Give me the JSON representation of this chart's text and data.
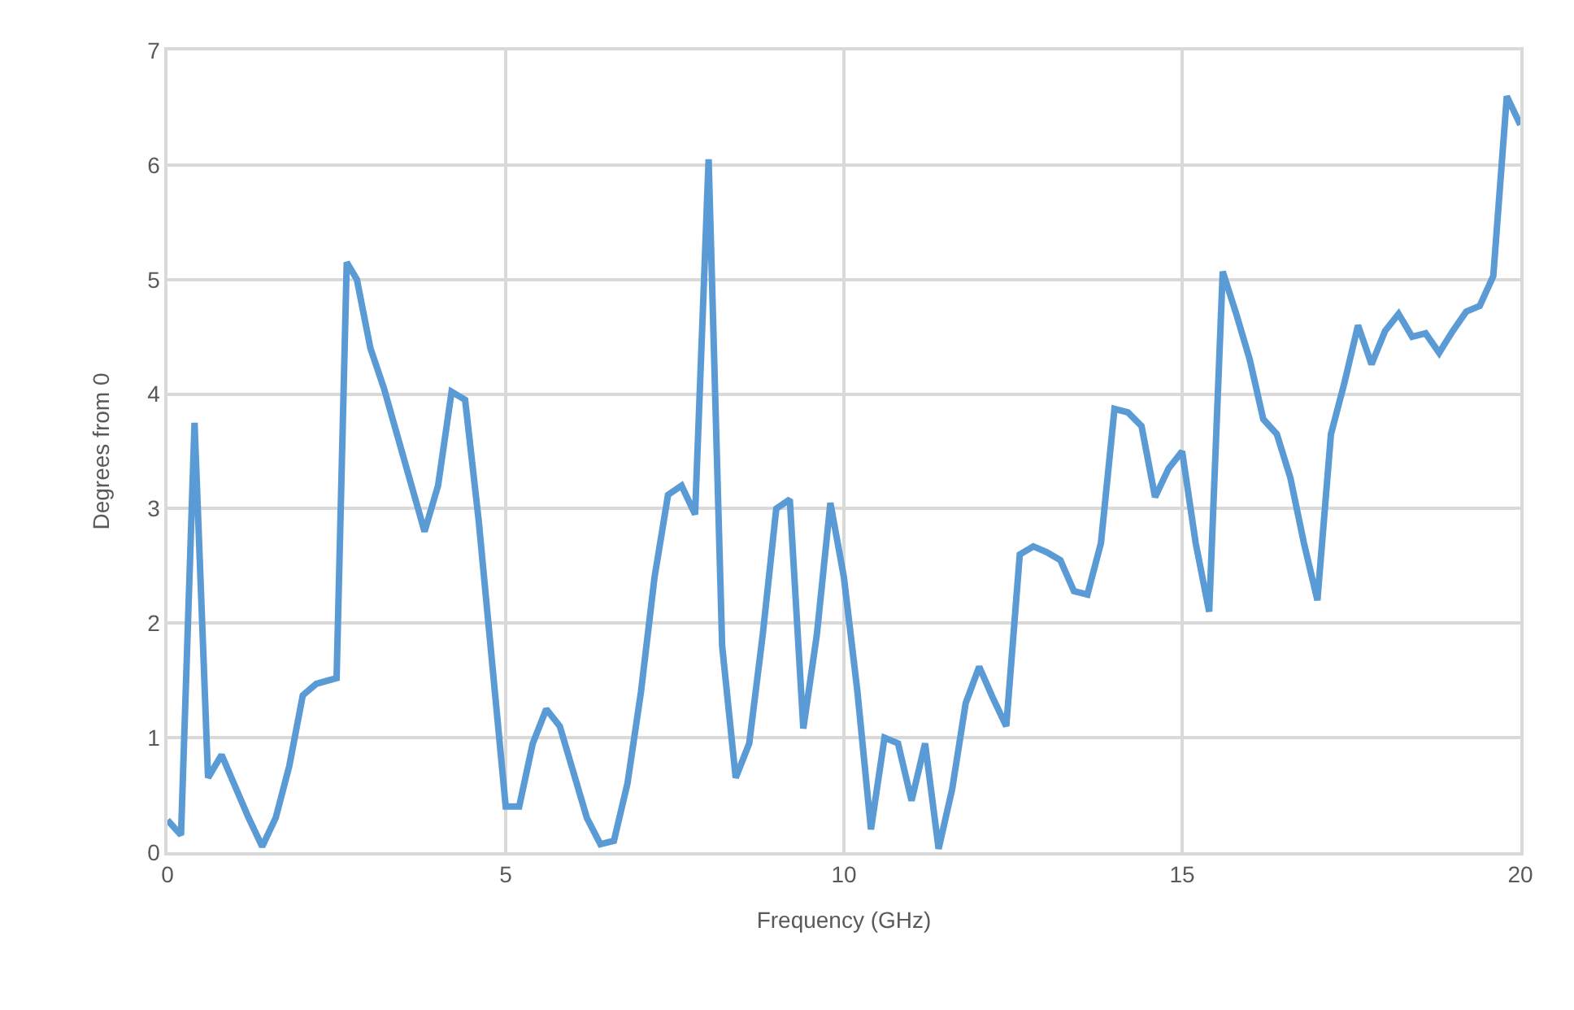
{
  "chart_data": {
    "type": "line",
    "xlabel": "Frequency (GHz)",
    "ylabel": "Degrees from 0",
    "x": [
      0,
      0.2,
      0.4,
      0.6,
      0.8,
      1.2,
      1.4,
      1.6,
      1.8,
      2.0,
      2.2,
      2.5,
      2.65,
      2.8,
      3.0,
      3.2,
      3.8,
      4.0,
      4.2,
      4.4,
      4.6,
      5.0,
      5.2,
      5.4,
      5.6,
      5.8,
      6.0,
      6.2,
      6.4,
      6.6,
      6.8,
      7.0,
      7.2,
      7.4,
      7.6,
      7.8,
      8.0,
      8.2,
      8.4,
      8.6,
      8.8,
      9.0,
      9.2,
      9.4,
      9.6,
      9.8,
      10.0,
      10.2,
      10.4,
      10.6,
      10.8,
      11.0,
      11.2,
      11.4,
      11.6,
      11.8,
      12.0,
      12.2,
      12.4,
      12.6,
      12.8,
      13.0,
      13.2,
      13.4,
      13.6,
      13.8,
      14.0,
      14.2,
      14.4,
      14.6,
      14.8,
      15.0,
      15.2,
      15.4,
      15.6,
      15.8,
      16.0,
      16.2,
      16.4,
      16.6,
      16.8,
      17.0,
      17.2,
      17.4,
      17.6,
      17.8,
      18.0,
      18.2,
      18.4,
      18.6,
      18.8,
      19.0,
      19.2,
      19.4,
      19.6,
      19.8,
      20.0
    ],
    "series": [
      {
        "color": "#5b9bd5",
        "values": [
          0.28,
          0.15,
          3.75,
          0.65,
          0.85,
          0.3,
          0.05,
          0.3,
          0.75,
          1.37,
          1.47,
          1.52,
          5.15,
          5.0,
          4.4,
          4.05,
          2.8,
          3.2,
          4.02,
          3.95,
          2.9,
          0.4,
          0.4,
          0.95,
          1.25,
          1.1,
          0.7,
          0.3,
          0.07,
          0.1,
          0.6,
          1.4,
          2.4,
          3.12,
          3.2,
          2.95,
          6.05,
          1.8,
          0.65,
          0.95,
          1.9,
          3.0,
          3.08,
          1.08,
          1.9,
          3.05,
          2.4,
          1.4,
          0.2,
          1.0,
          0.95,
          0.45,
          0.95,
          0.03,
          0.55,
          1.3,
          1.62,
          1.35,
          1.1,
          2.6,
          2.67,
          2.62,
          2.55,
          2.28,
          2.25,
          2.7,
          3.87,
          3.84,
          3.72,
          3.1,
          3.35,
          3.5,
          2.7,
          2.1,
          5.07,
          4.7,
          4.3,
          3.78,
          3.65,
          3.27,
          2.7,
          2.2,
          3.65,
          4.1,
          4.6,
          4.26,
          4.55,
          4.7,
          4.5,
          4.53,
          4.36,
          4.55,
          4.72,
          4.77,
          5.03,
          6.6,
          6.35
        ]
      }
    ],
    "xlim": [
      0,
      20
    ],
    "xticks": [
      0,
      5,
      10,
      15,
      20
    ],
    "ylim": [
      0,
      7
    ],
    "yticks": [
      0,
      1,
      2,
      3,
      4,
      5,
      6,
      7
    ],
    "grid": true,
    "marker": "none",
    "line_style": "solid"
  }
}
